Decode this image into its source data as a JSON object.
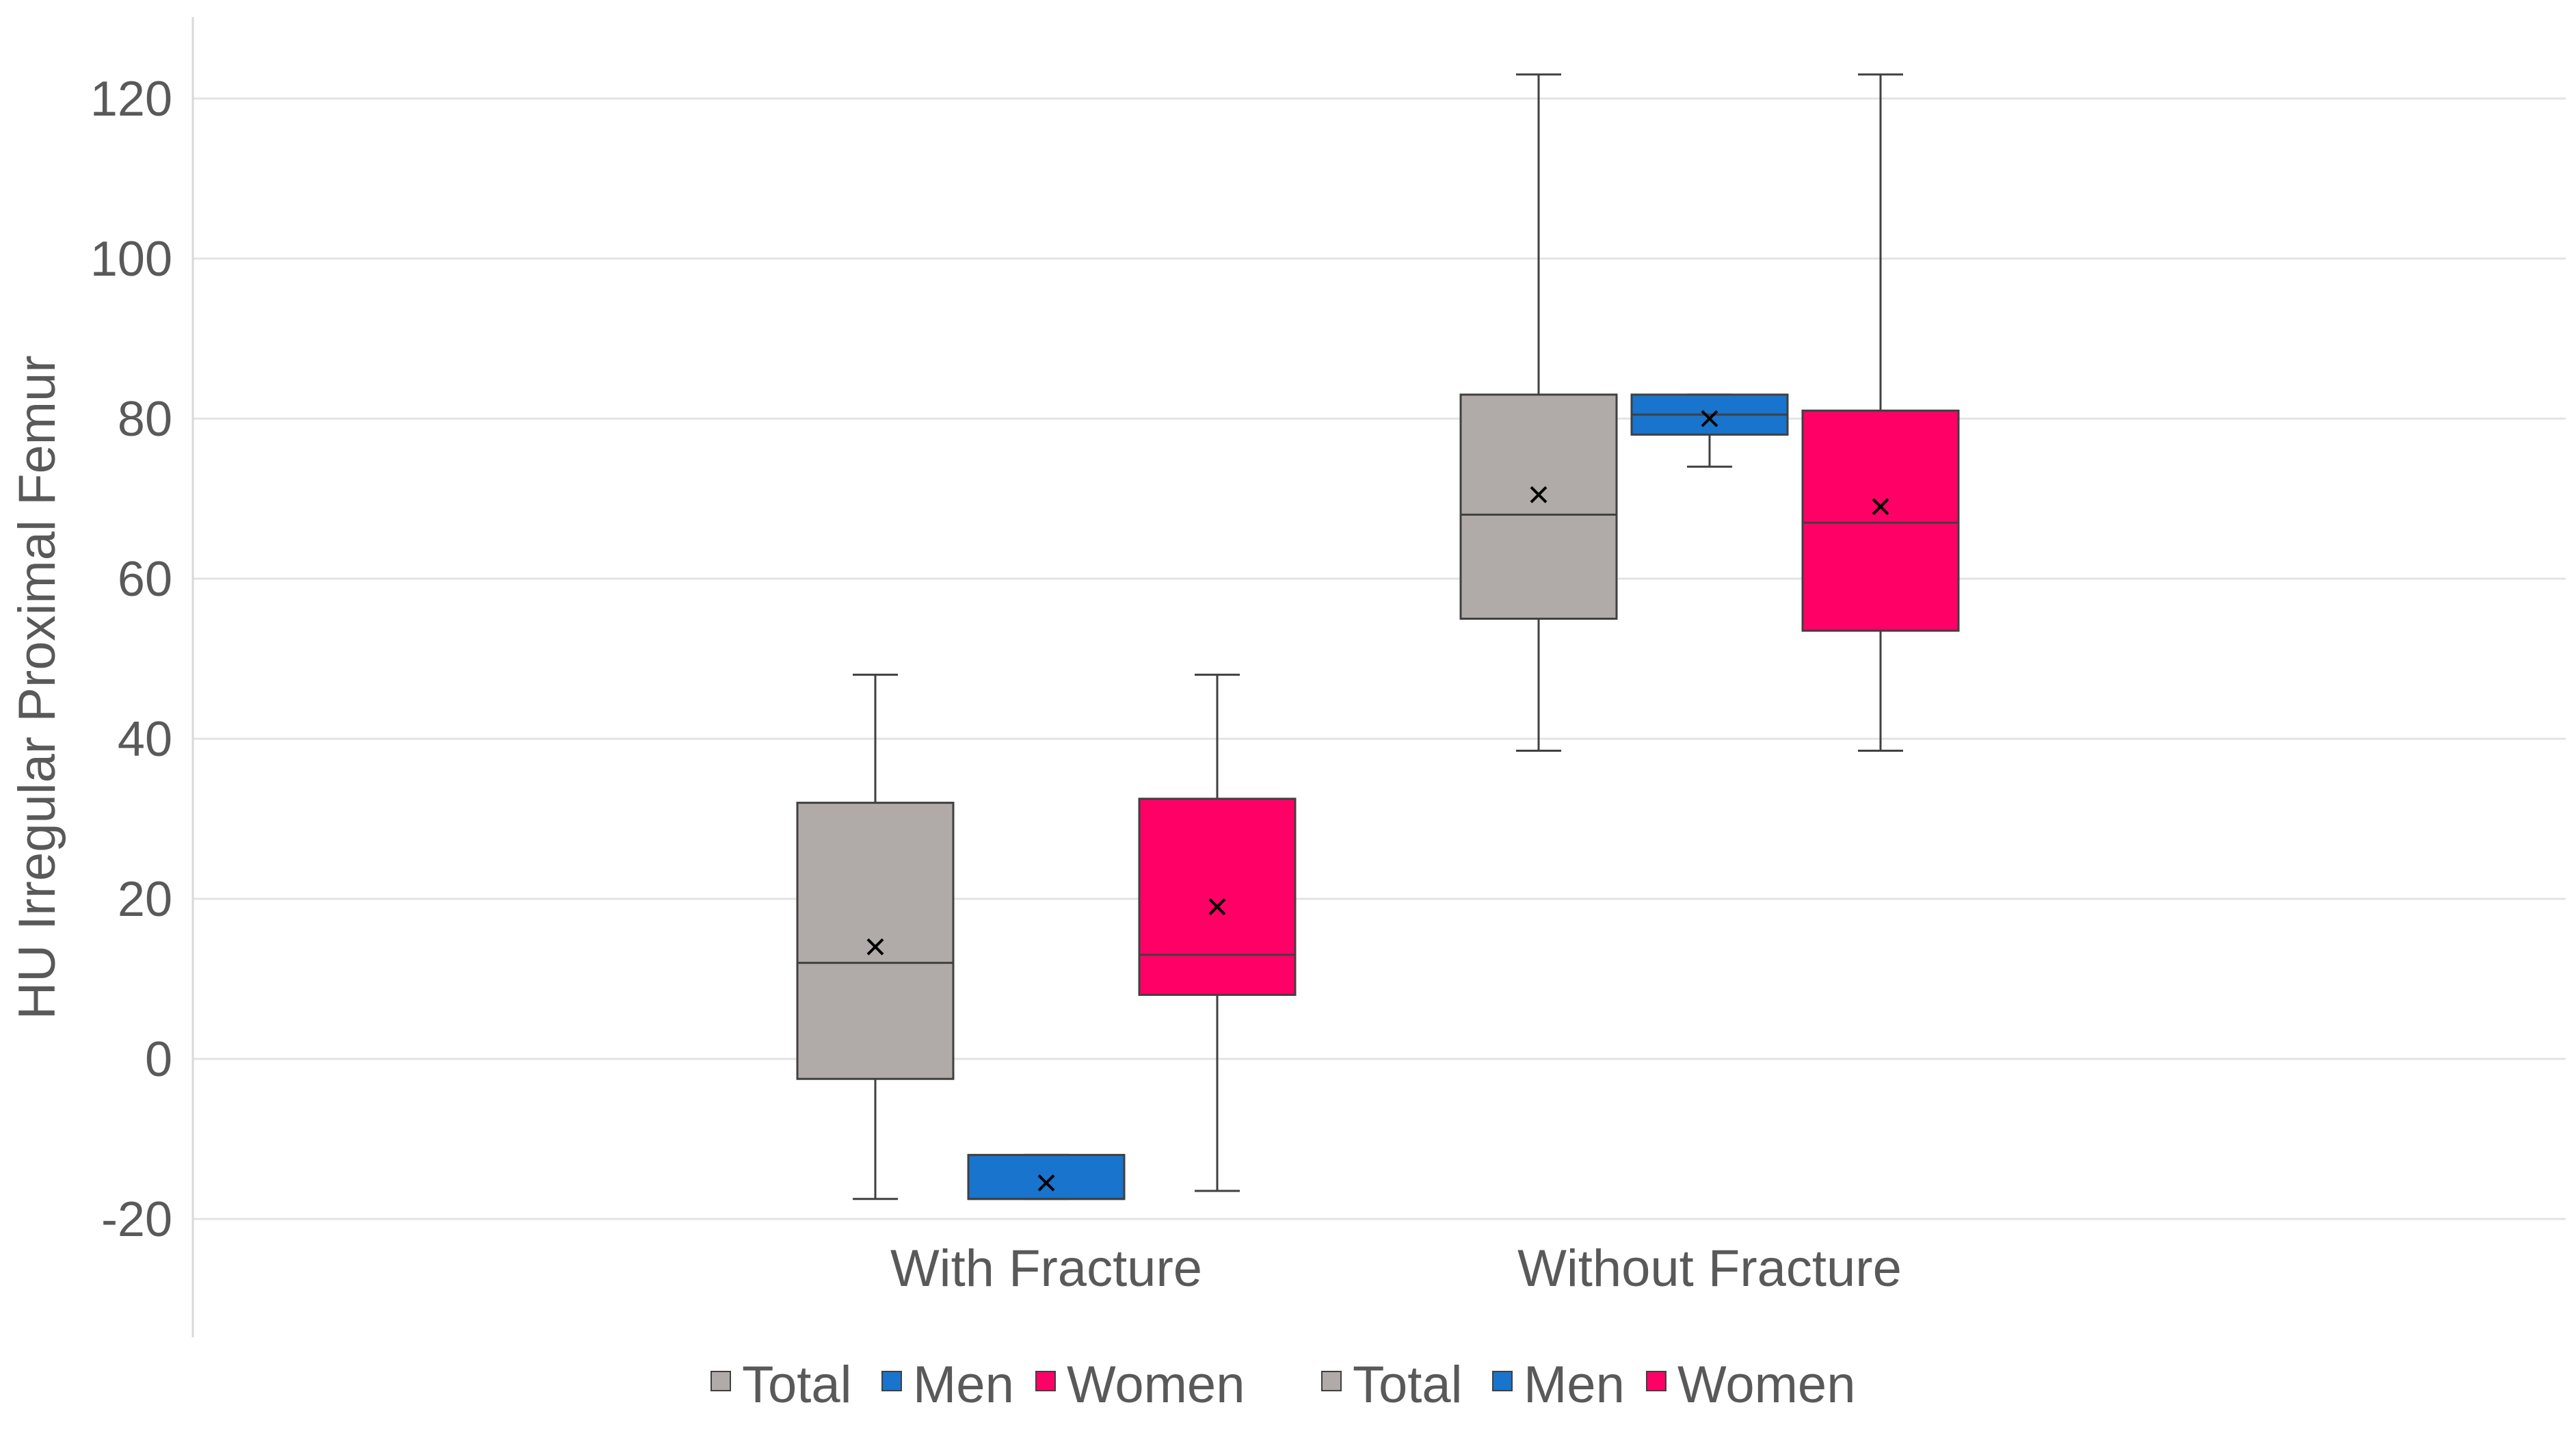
{
  "chart_data": {
    "type": "box",
    "ylabel": "HU Irregular Proximal Femur",
    "xlabel": "",
    "ylim": [
      -35,
      130
    ],
    "yticks": [
      -20,
      0,
      20,
      40,
      60,
      80,
      100,
      120
    ],
    "grid": true,
    "legend_placement": "bottom",
    "categories": [
      "With Fracture",
      "Without Fracture"
    ],
    "series": [
      {
        "name": "Total",
        "color": "#b0aba8",
        "boxes": [
          {
            "category": "With Fracture",
            "min": -17.5,
            "q1": -2.5,
            "median": 12,
            "mean": 14,
            "q3": 32,
            "max": 48
          },
          {
            "category": "Without Fracture",
            "min": 38.5,
            "q1": 55,
            "median": 68,
            "mean": 70.5,
            "q3": 83,
            "max": 123
          }
        ]
      },
      {
        "name": "Men",
        "color": "#1874cd",
        "boxes": [
          {
            "category": "With Fracture",
            "min": -17.5,
            "q1": -17.5,
            "median": -17.5,
            "mean": -15.5,
            "q3": -12,
            "max": -12
          },
          {
            "category": "Without Fracture",
            "min": 74,
            "q1": 78,
            "median": 80.5,
            "mean": 80,
            "q3": 83,
            "max": 83
          }
        ]
      },
      {
        "name": "Women",
        "color": "#ff0066",
        "boxes": [
          {
            "category": "With Fracture",
            "min": -16.5,
            "q1": 8,
            "median": 13,
            "mean": 19,
            "q3": 32.5,
            "max": 48
          },
          {
            "category": "Without Fracture",
            "min": 38.5,
            "q1": 53.5,
            "median": 67,
            "mean": 69,
            "q3": 81,
            "max": 123
          }
        ]
      }
    ],
    "legend_entries": [
      "Total",
      "Men",
      "Women",
      "Total",
      "Men",
      "Women"
    ]
  }
}
